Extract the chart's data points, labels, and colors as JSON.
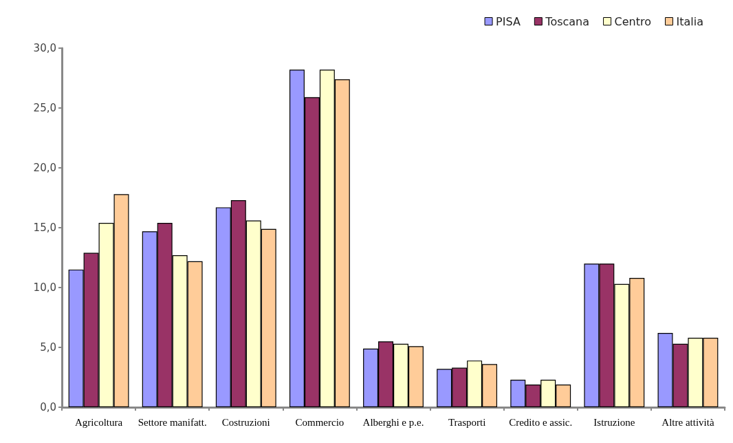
{
  "chart_data": {
    "type": "bar",
    "categories": [
      "Agricoltura",
      "Settore manifatt.",
      "Costruzioni",
      "Commercio",
      "Alberghi e p.e.",
      "Trasporti",
      "Credito e assic.",
      "Istruzione",
      "Altre attività"
    ],
    "series": [
      {
        "name": "PISA",
        "color": "#9999ff",
        "values": [
          11.5,
          14.7,
          16.7,
          28.2,
          4.9,
          3.2,
          2.3,
          12.0,
          6.2
        ]
      },
      {
        "name": "Toscana",
        "color": "#993366",
        "values": [
          12.9,
          15.4,
          17.3,
          25.9,
          5.5,
          3.3,
          1.9,
          12.0,
          5.3
        ]
      },
      {
        "name": "Centro",
        "color": "#ffffcc",
        "values": [
          15.4,
          12.7,
          15.6,
          28.2,
          5.3,
          3.9,
          2.3,
          10.3,
          5.8
        ]
      },
      {
        "name": "Italia",
        "color": "#ffcc99",
        "values": [
          17.8,
          12.2,
          14.9,
          27.4,
          5.1,
          3.6,
          1.9,
          10.8,
          5.8
        ]
      }
    ],
    "ylim": [
      0,
      30
    ],
    "yticks": [
      {
        "value": 0,
        "label": "0,0"
      },
      {
        "value": 5,
        "label": "5,0"
      },
      {
        "value": 10,
        "label": "10,0"
      },
      {
        "value": 15,
        "label": "15,0"
      },
      {
        "value": 20,
        "label": "20,0"
      },
      {
        "value": 25,
        "label": "25,0"
      },
      {
        "value": 30,
        "label": "30,0"
      }
    ],
    "grid": false,
    "legend": "top right"
  }
}
